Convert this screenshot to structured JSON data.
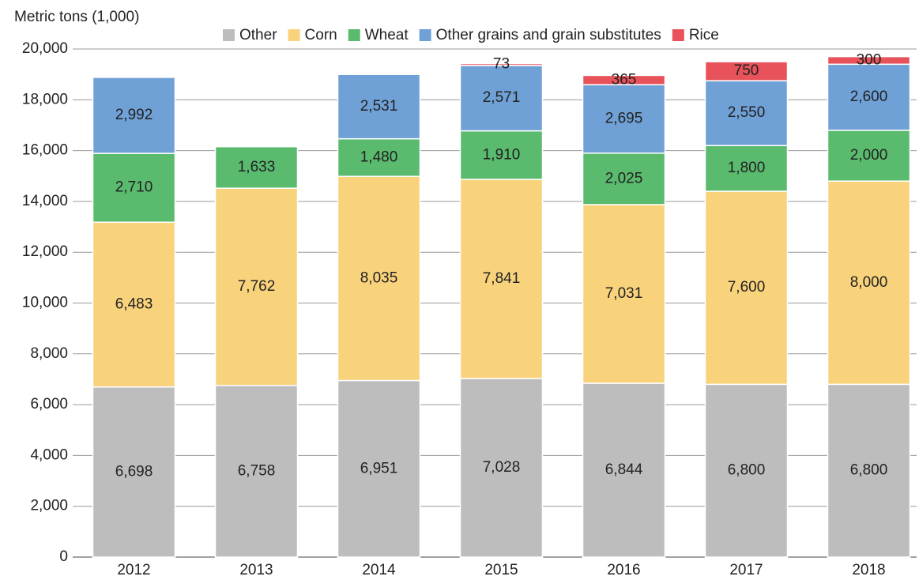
{
  "chart_data": {
    "type": "stacked_bar",
    "y_label": "Metric tons (1,000)",
    "categories": [
      "2012",
      "2013",
      "2014",
      "2015",
      "2016",
      "2017",
      "2018"
    ],
    "series": [
      {
        "name": "Other",
        "color": "#bdbdbd",
        "values": [
          6698,
          6758,
          6951,
          7028,
          6844,
          6800,
          6800
        ],
        "value_labels": [
          "6,698",
          "6,758",
          "6,951",
          "7,028",
          "6,844",
          "6,800",
          "6,800"
        ]
      },
      {
        "name": "Corn",
        "color": "#f9d27c",
        "values": [
          6483,
          7762,
          8035,
          7841,
          7031,
          7600,
          8000
        ],
        "value_labels": [
          "6,483",
          "7,762",
          "8,035",
          "7,841",
          "7,031",
          "7,600",
          "8,000"
        ]
      },
      {
        "name": "Wheat",
        "color": "#5aba6e",
        "values": [
          2710,
          1633,
          1480,
          1910,
          2025,
          1800,
          2000
        ],
        "value_labels": [
          "2,710",
          "1,633",
          "1,480",
          "1,910",
          "2,025",
          "1,800",
          "2,000"
        ]
      },
      {
        "name": "Other grains and grain substitutes",
        "color": "#6fa0d6",
        "values": [
          2992,
          null,
          2531,
          2571,
          2695,
          2550,
          2600
        ],
        "value_labels": [
          "2,992",
          null,
          "2,531",
          "2,571",
          "2,695",
          "2,550",
          "2,600"
        ]
      },
      {
        "name": "Rice",
        "color": "#e8525a",
        "values": [
          null,
          null,
          null,
          73,
          365,
          750,
          300
        ]
      }
    ],
    "ylim": [
      0,
      20000
    ],
    "yticks": [
      0,
      {
        "value": 2000,
        "label": "2,000"
      },
      {
        "value": 4000,
        "label": "4,000"
      },
      {
        "value": 6000,
        "label": "6,000"
      },
      {
        "value": 8000,
        "label": "8,000"
      },
      {
        "value": 10000,
        "label": "10,000"
      },
      {
        "value": 12000,
        "label": "12,000"
      },
      {
        "value": 14000,
        "label": "14,000"
      },
      {
        "value": 16000,
        "label": "16,000"
      },
      {
        "value": 18000,
        "label": "18,000"
      },
      {
        "value": 20000,
        "label": "20,000"
      }
    ],
    "grid": true
  }
}
